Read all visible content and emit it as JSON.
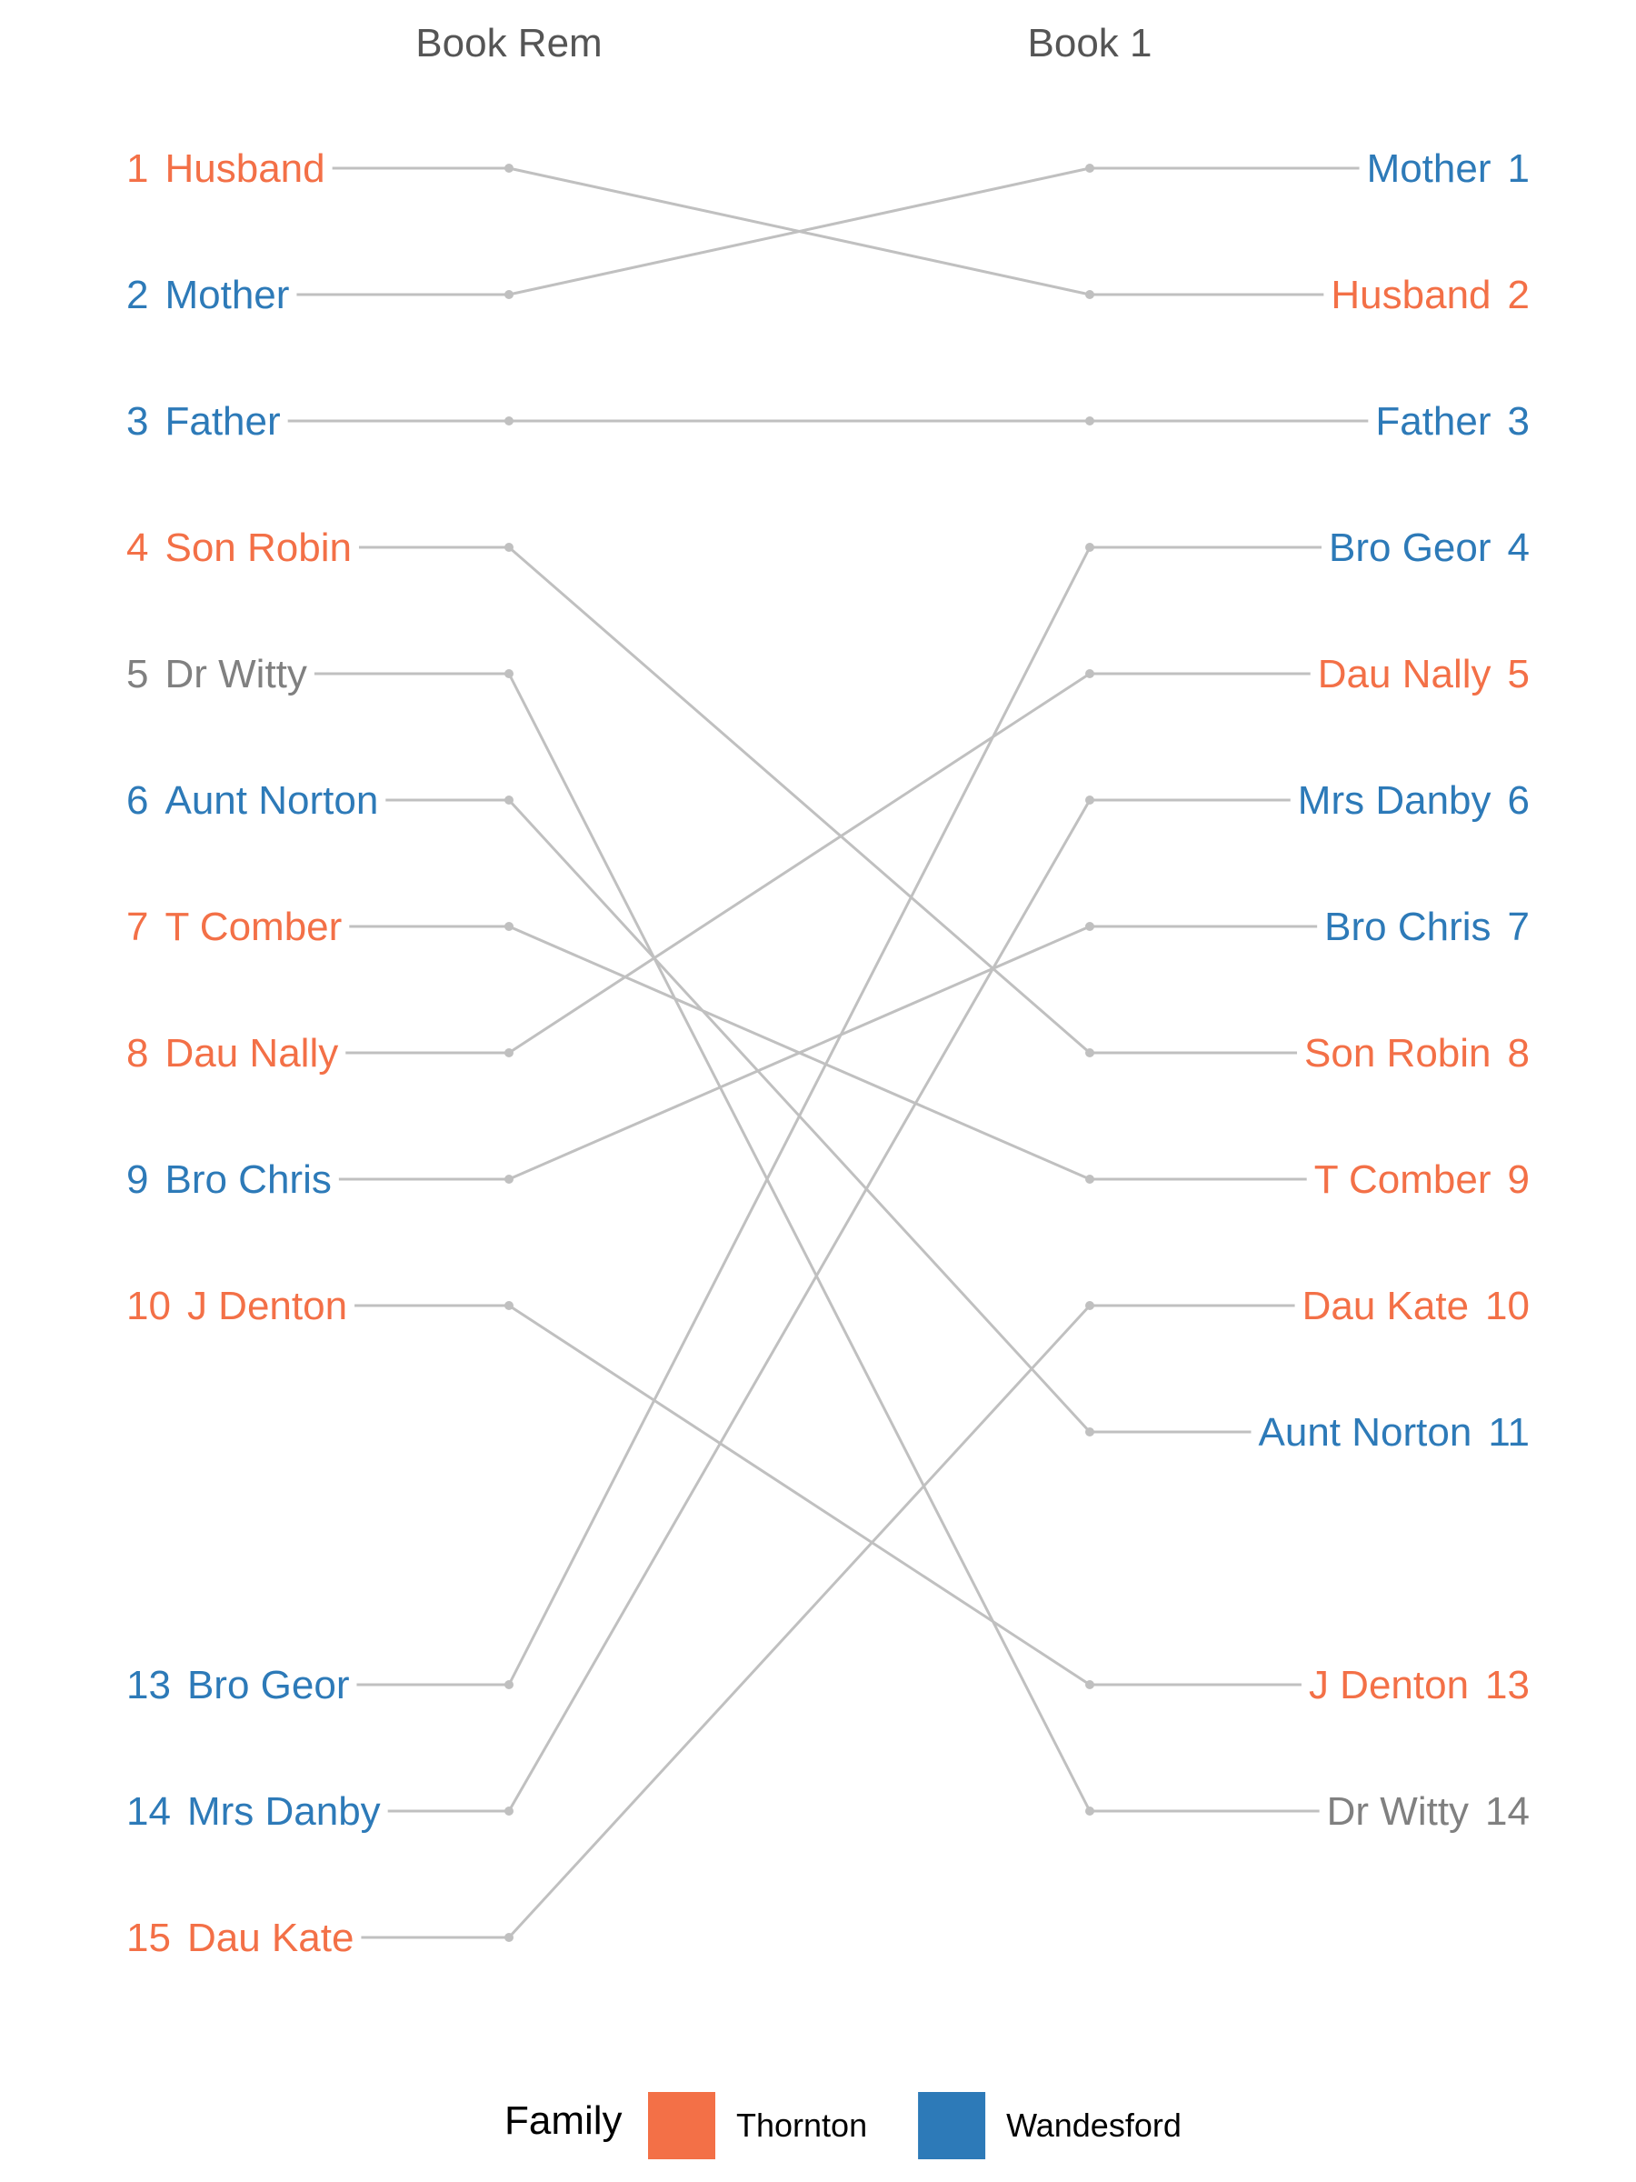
{
  "colors": {
    "Thornton": "#f37047",
    "Wandesford": "#2d7ab8",
    "none": "#808080",
    "line": "#c0c0c0",
    "column_title": "#555555",
    "legend_text": "#000000"
  },
  "chart_data": {
    "type": "slope",
    "columns": [
      "Book Rem",
      "Book 1"
    ],
    "items": [
      {
        "name": "Husband",
        "family": "Thornton",
        "ranks": [
          1,
          2
        ]
      },
      {
        "name": "Mother",
        "family": "Wandesford",
        "ranks": [
          2,
          1
        ]
      },
      {
        "name": "Father",
        "family": "Wandesford",
        "ranks": [
          3,
          3
        ]
      },
      {
        "name": "Son Robin",
        "family": "Thornton",
        "ranks": [
          4,
          8
        ]
      },
      {
        "name": "Dr Witty",
        "family": "none",
        "ranks": [
          5,
          14
        ]
      },
      {
        "name": "Aunt Norton",
        "family": "Wandesford",
        "ranks": [
          6,
          11
        ]
      },
      {
        "name": "T Comber",
        "family": "Thornton",
        "ranks": [
          7,
          9
        ]
      },
      {
        "name": "Dau Nally",
        "family": "Thornton",
        "ranks": [
          8,
          5
        ]
      },
      {
        "name": "Bro Chris",
        "family": "Wandesford",
        "ranks": [
          9,
          7
        ]
      },
      {
        "name": "J Denton",
        "family": "Thornton",
        "ranks": [
          10,
          13
        ]
      },
      {
        "name": "Bro Geor",
        "family": "Wandesford",
        "ranks": [
          13,
          4
        ]
      },
      {
        "name": "Mrs Danby",
        "family": "Wandesford",
        "ranks": [
          14,
          6
        ]
      },
      {
        "name": "Dau Kate",
        "family": "Thornton",
        "ranks": [
          15,
          10
        ]
      }
    ],
    "rank_range": [
      1,
      15
    ],
    "legend": {
      "title": "Family",
      "entries": [
        "Thornton",
        "Wandesford"
      ],
      "placement": "bottom"
    },
    "grid": false
  }
}
